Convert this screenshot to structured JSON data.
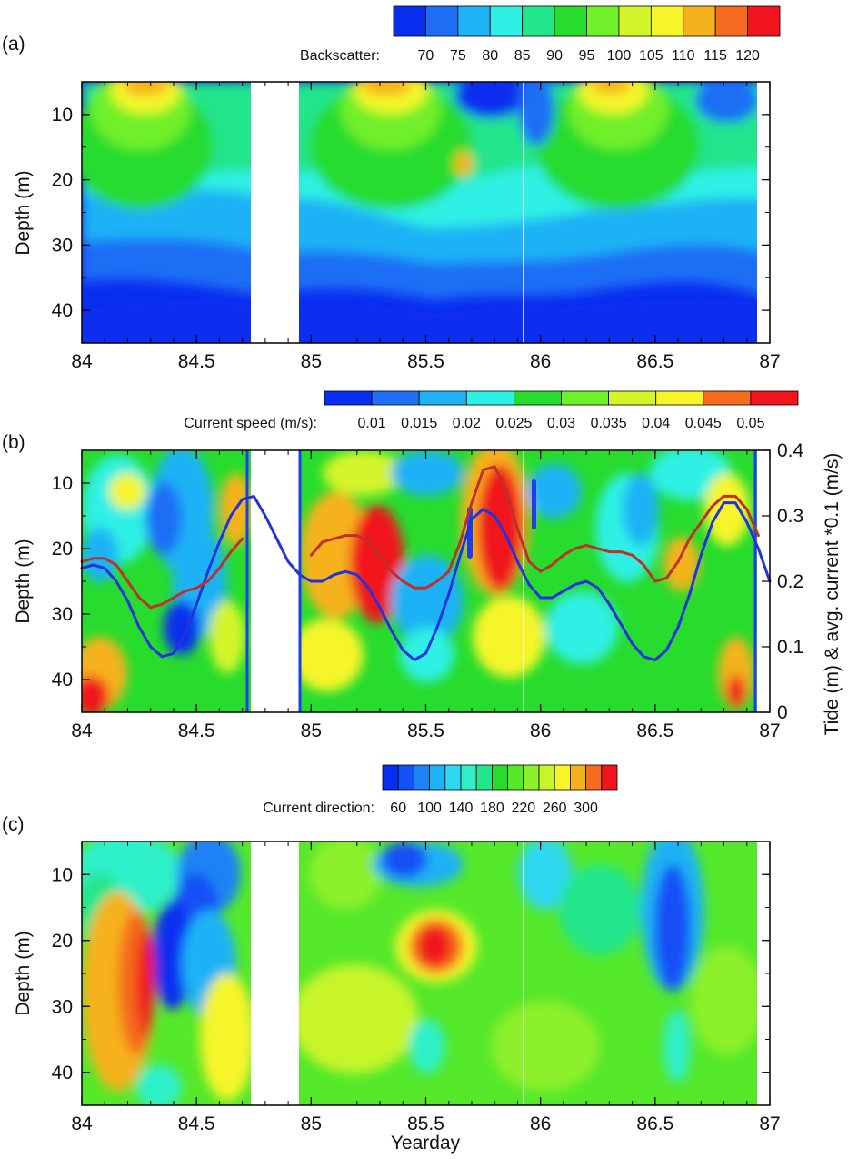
{
  "figure_title": "",
  "chart_data": [
    {
      "type": "heatmap",
      "panel": "(a)",
      "title": "",
      "xlabel": "",
      "ylabel": "Depth (m)",
      "xlim": [
        84,
        87
      ],
      "ylim": [
        5,
        45
      ],
      "y_inverted": true,
      "xticks": [
        84,
        84.5,
        85,
        85.5,
        86,
        86.5,
        87
      ],
      "xtick_labels": [
        "84",
        "84.5",
        "85",
        "85.5",
        "86",
        "86.5",
        "87"
      ],
      "yticks": [
        10,
        20,
        30,
        40
      ],
      "ytick_labels": [
        "10",
        "20",
        "30",
        "40"
      ],
      "data_gap": [
        84.73,
        84.93
      ],
      "colorbar": {
        "title": "Backscatter:",
        "levels": [
          "70",
          "75",
          "80",
          "85",
          "90",
          "95",
          "100",
          "105",
          "110",
          "115",
          "120"
        ],
        "colors": [
          "#0a2ef0",
          "#1e6ef5",
          "#1fb2f5",
          "#2ef0e4",
          "#22e58c",
          "#27dc2d",
          "#6ff02a",
          "#d4f52a",
          "#f5f52a",
          "#f5b21e",
          "#f56a1e",
          "#f0141e"
        ]
      },
      "field_description": "high backscatter (110-120) near surface around 84.35, 85.25, 86.35; low (70) below 38 m"
    },
    {
      "type": "heatmap",
      "panel": "(b)",
      "title": "",
      "xlabel": "",
      "ylabel": "Depth (m)",
      "y2label": "Tide (m) & avg. current *0.1 (m/s)",
      "xlim": [
        84,
        87
      ],
      "ylim": [
        5,
        45
      ],
      "y_inverted": true,
      "y2lim": [
        0,
        0.4
      ],
      "xticks": [
        84,
        84.5,
        85,
        85.5,
        86,
        86.5,
        87
      ],
      "xtick_labels": [
        "84",
        "84.5",
        "85",
        "85.5",
        "86",
        "86.5",
        "87"
      ],
      "yticks": [
        10,
        20,
        30,
        40
      ],
      "ytick_labels": [
        "10",
        "20",
        "30",
        "40"
      ],
      "y2ticks": [
        0,
        0.1,
        0.2,
        0.3,
        0.4
      ],
      "y2tick_labels": [
        "0",
        "0.1",
        "0.2",
        "0.3",
        "0.4"
      ],
      "data_gap": [
        84.73,
        84.93
      ],
      "colorbar": {
        "title": "Current speed (m/s):",
        "levels": [
          "0.01",
          "0.015",
          "0.02",
          "0.025",
          "0.03",
          "0.035",
          "0.04",
          "0.045",
          "0.05"
        ],
        "colors": [
          "#0a2ef0",
          "#1e6ef5",
          "#1fb2f5",
          "#2ef0e4",
          "#27dc2d",
          "#6ff02a",
          "#d4f52a",
          "#f5f52a",
          "#f56a1e",
          "#f0141e"
        ]
      },
      "series": [
        {
          "name": "Tide",
          "color": "#2233dd",
          "axis": "y2",
          "x": [
            84.0,
            84.05,
            84.1,
            84.15,
            84.2,
            84.25,
            84.3,
            84.35,
            84.4,
            84.45,
            84.5,
            84.55,
            84.6,
            84.65,
            84.7,
            84.75,
            84.8,
            84.85,
            84.9,
            84.95,
            85.0,
            85.05,
            85.1,
            85.15,
            85.2,
            85.25,
            85.3,
            85.35,
            85.4,
            85.45,
            85.5,
            85.55,
            85.6,
            85.65,
            85.7,
            85.75,
            85.8,
            85.85,
            85.9,
            85.95,
            86.0,
            86.05,
            86.1,
            86.15,
            86.2,
            86.25,
            86.3,
            86.35,
            86.4,
            86.45,
            86.5,
            86.55,
            86.6,
            86.65,
            86.7,
            86.75,
            86.8,
            86.85,
            86.9,
            86.95,
            87.0
          ],
          "values": [
            0.22,
            0.225,
            0.22,
            0.2,
            0.17,
            0.13,
            0.1,
            0.085,
            0.09,
            0.12,
            0.165,
            0.215,
            0.26,
            0.3,
            0.325,
            0.33,
            0.3,
            0.265,
            0.23,
            0.21,
            0.2,
            0.2,
            0.21,
            0.215,
            0.21,
            0.19,
            0.16,
            0.125,
            0.095,
            0.08,
            0.09,
            0.13,
            0.18,
            0.24,
            0.295,
            0.31,
            0.3,
            0.27,
            0.23,
            0.195,
            0.175,
            0.175,
            0.185,
            0.195,
            0.2,
            0.19,
            0.165,
            0.135,
            0.105,
            0.085,
            0.08,
            0.095,
            0.13,
            0.18,
            0.24,
            0.29,
            0.32,
            0.32,
            0.29,
            0.25,
            0.2
          ]
        },
        {
          "name": "avg. current *0.1",
          "color": "#c0302a",
          "axis": "y2",
          "x": [
            84.0,
            84.05,
            84.1,
            84.15,
            84.2,
            84.25,
            84.3,
            84.35,
            84.4,
            84.45,
            84.5,
            84.55,
            84.6,
            84.65,
            84.7,
            null,
            85.0,
            85.05,
            85.1,
            85.15,
            85.2,
            85.25,
            85.3,
            85.35,
            85.4,
            85.45,
            85.5,
            85.55,
            85.6,
            85.65,
            85.7,
            85.75,
            85.8,
            85.85,
            85.9,
            85.95,
            86.0,
            86.05,
            86.1,
            86.15,
            86.2,
            86.25,
            86.3,
            86.35,
            86.4,
            86.45,
            86.5,
            86.55,
            86.6,
            86.65,
            86.7,
            86.75,
            86.8,
            86.85,
            86.9,
            86.95
          ],
          "values": [
            0.23,
            0.235,
            0.235,
            0.225,
            0.2,
            0.175,
            0.16,
            0.165,
            0.175,
            0.185,
            0.19,
            0.2,
            0.22,
            0.245,
            0.265,
            null,
            0.24,
            0.26,
            0.265,
            0.27,
            0.27,
            0.26,
            0.24,
            0.215,
            0.2,
            0.19,
            0.19,
            0.2,
            0.215,
            0.26,
            0.32,
            0.37,
            0.375,
            0.34,
            0.28,
            0.23,
            0.215,
            0.225,
            0.24,
            0.25,
            0.255,
            0.25,
            0.245,
            0.245,
            0.24,
            0.225,
            0.2,
            0.205,
            0.23,
            0.265,
            0.29,
            0.315,
            0.33,
            0.33,
            0.31,
            0.27
          ]
        }
      ],
      "field_description": "high speed (0.05) patches at 85.1-85.35 (15-30 m) and 85.7-85.9 (8-25 m)"
    },
    {
      "type": "heatmap",
      "panel": "(c)",
      "title": "",
      "xlabel": "Yearday",
      "ylabel": "Depth (m)",
      "xlim": [
        84,
        87
      ],
      "ylim": [
        5,
        45
      ],
      "y_inverted": true,
      "xticks": [
        84,
        84.5,
        85,
        85.5,
        86,
        86.5,
        87
      ],
      "xtick_labels": [
        "84",
        "84.5",
        "85",
        "85.5",
        "86",
        "86.5",
        "87"
      ],
      "yticks": [
        10,
        20,
        30,
        40
      ],
      "ytick_labels": [
        "10",
        "20",
        "30",
        "40"
      ],
      "data_gap": [
        84.73,
        84.93
      ],
      "colorbar": {
        "title": "Current direction:",
        "levels": [
          "60",
          "100",
          "140",
          "180",
          "220",
          "260",
          "300"
        ],
        "colors": [
          "#0a2ef0",
          "#1450f5",
          "#1e82f5",
          "#1fb2f5",
          "#2ed8f0",
          "#2ef0c8",
          "#22e58c",
          "#27dc2d",
          "#55e82a",
          "#8cf02a",
          "#c8f52a",
          "#f5f52a",
          "#f5b21e",
          "#f56a1e",
          "#f0141e"
        ]
      },
      "field_description": "mostly green (180-240); red patch near 84.1-84.3 at depth 20-45 m and at 85.5, 20 m; blue near 84.35-84.5 and 86.5"
    }
  ]
}
